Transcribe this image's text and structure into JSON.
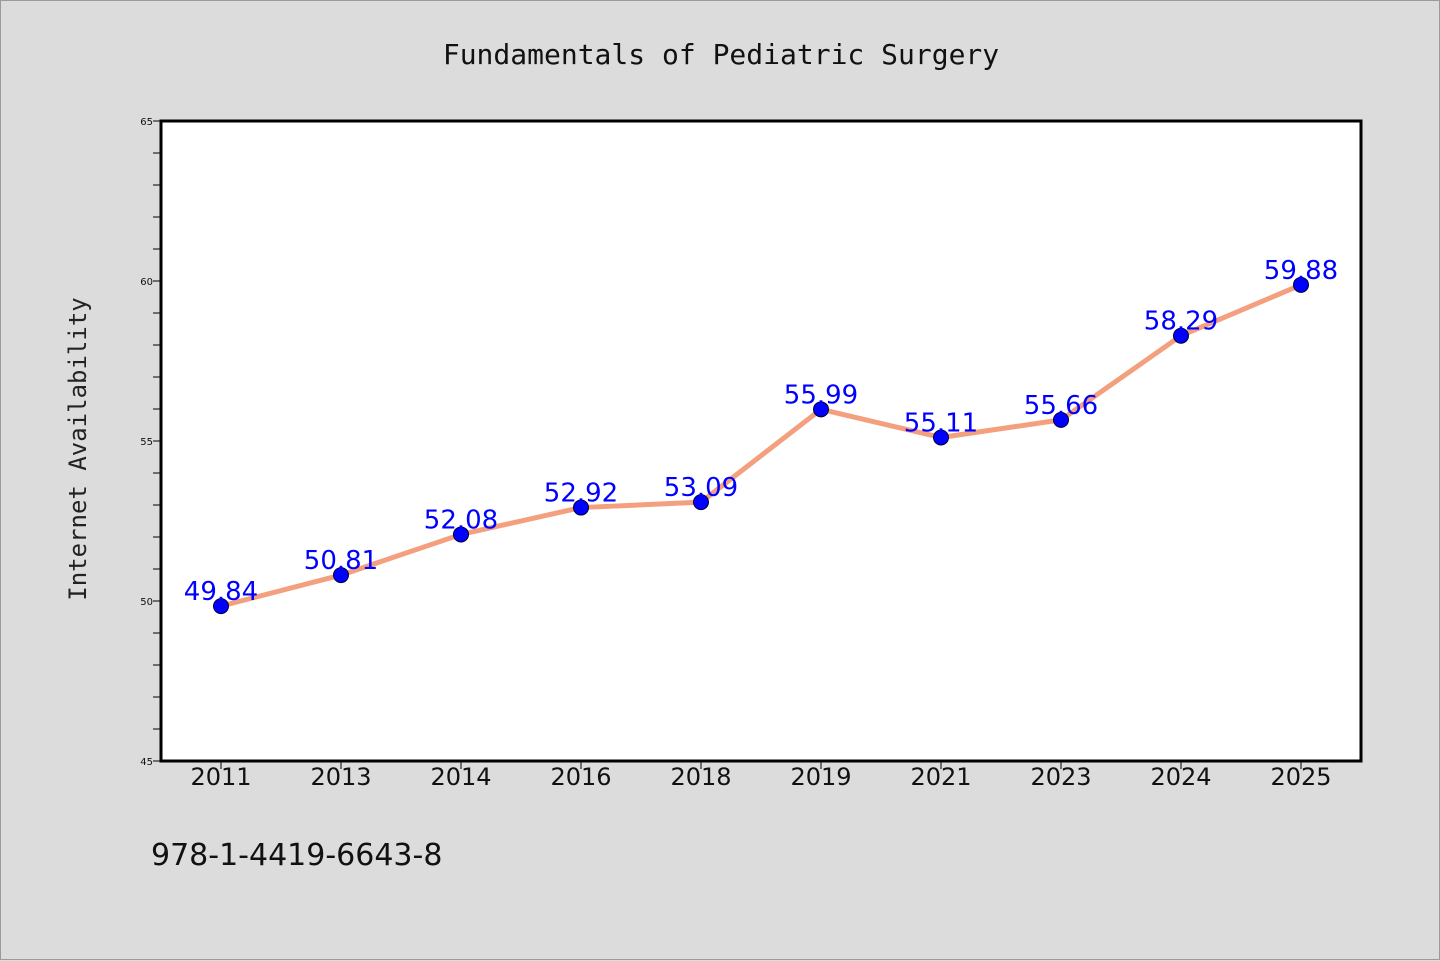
{
  "chart_data": {
    "type": "line",
    "title": "Fundamentals of Pediatric Surgery",
    "ylabel": "Internet Availability",
    "xlabel": "",
    "categories": [
      "2011",
      "2013",
      "2014",
      "2016",
      "2018",
      "2019",
      "2021",
      "2023",
      "2024",
      "2025"
    ],
    "series": [
      {
        "values": [
          49.84,
          50.81,
          52.08,
          52.92,
          53.09,
          55.99,
          55.11,
          55.66,
          58.29,
          59.88
        ],
        "data_labels": [
          "49.84",
          "50.81",
          "52.08",
          "52.92",
          "53.09",
          "55.99",
          "55.11",
          "55.66",
          "58.29",
          "59.88"
        ],
        "line_color": "#f4a07e",
        "marker_color": "#0000ff"
      }
    ],
    "ylim": [
      45,
      65
    ],
    "yticks": [
      45,
      50,
      55,
      60,
      65
    ],
    "ytick_labels": [
      "45",
      "50",
      "55",
      "60",
      "65"
    ],
    "grid": false,
    "label_color": "#0000ff"
  },
  "footer": {
    "isbn": "978-1-4419-6643-8"
  }
}
